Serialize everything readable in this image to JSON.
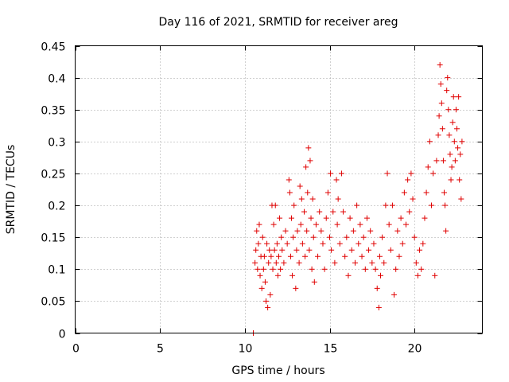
{
  "chart_data": {
    "type": "scatter",
    "title": "Day 116 of 2021, SRMTID for receiver areg",
    "xlabel": "GPS time / hours",
    "ylabel": "SRMTID / TECUs",
    "xlim": [
      0,
      24
    ],
    "ylim": [
      0,
      0.45
    ],
    "xticks": [
      0,
      5,
      10,
      15,
      20
    ],
    "yticks": [
      0,
      0.05,
      0.1,
      0.15,
      0.2,
      0.25,
      0.3,
      0.35,
      0.4,
      0.45
    ],
    "grid": true,
    "marker": "+",
    "color": "#e00000",
    "series": [
      {
        "name": "SRMTID",
        "points": [
          [
            10.5,
            0.0
          ],
          [
            10.6,
            0.11
          ],
          [
            10.65,
            0.13
          ],
          [
            10.7,
            0.16
          ],
          [
            10.75,
            0.1
          ],
          [
            10.8,
            0.14
          ],
          [
            10.85,
            0.17
          ],
          [
            10.9,
            0.09
          ],
          [
            10.95,
            0.12
          ],
          [
            11.0,
            0.07
          ],
          [
            11.05,
            0.15
          ],
          [
            11.1,
            0.1
          ],
          [
            11.15,
            0.12
          ],
          [
            11.2,
            0.08
          ],
          [
            11.25,
            0.05
          ],
          [
            11.3,
            0.14
          ],
          [
            11.35,
            0.04
          ],
          [
            11.4,
            0.11
          ],
          [
            11.45,
            0.13
          ],
          [
            11.5,
            0.06
          ],
          [
            11.55,
            0.12
          ],
          [
            11.6,
            0.2
          ],
          [
            11.65,
            0.1
          ],
          [
            11.7,
            0.17
          ],
          [
            11.75,
            0.13
          ],
          [
            11.8,
            0.2
          ],
          [
            11.85,
            0.11
          ],
          [
            11.9,
            0.14
          ],
          [
            11.95,
            0.09
          ],
          [
            12.0,
            0.12
          ],
          [
            12.05,
            0.18
          ],
          [
            12.1,
            0.1
          ],
          [
            12.15,
            0.15
          ],
          [
            12.2,
            0.13
          ],
          [
            12.3,
            0.11
          ],
          [
            12.4,
            0.16
          ],
          [
            12.5,
            0.14
          ],
          [
            12.6,
            0.24
          ],
          [
            12.65,
            0.22
          ],
          [
            12.7,
            0.12
          ],
          [
            12.75,
            0.18
          ],
          [
            12.8,
            0.09
          ],
          [
            12.85,
            0.15
          ],
          [
            12.9,
            0.2
          ],
          [
            13.0,
            0.07
          ],
          [
            13.05,
            0.13
          ],
          [
            13.1,
            0.16
          ],
          [
            13.2,
            0.11
          ],
          [
            13.25,
            0.23
          ],
          [
            13.3,
            0.17
          ],
          [
            13.35,
            0.21
          ],
          [
            13.4,
            0.14
          ],
          [
            13.5,
            0.19
          ],
          [
            13.55,
            0.12
          ],
          [
            13.6,
            0.26
          ],
          [
            13.65,
            0.16
          ],
          [
            13.7,
            0.22
          ],
          [
            13.75,
            0.29
          ],
          [
            13.8,
            0.13
          ],
          [
            13.85,
            0.27
          ],
          [
            13.9,
            0.18
          ],
          [
            13.95,
            0.1
          ],
          [
            14.0,
            0.21
          ],
          [
            14.05,
            0.15
          ],
          [
            14.1,
            0.08
          ],
          [
            14.2,
            0.17
          ],
          [
            14.3,
            0.12
          ],
          [
            14.4,
            0.19
          ],
          [
            14.5,
            0.16
          ],
          [
            14.6,
            0.14
          ],
          [
            14.7,
            0.1
          ],
          [
            14.8,
            0.18
          ],
          [
            14.9,
            0.22
          ],
          [
            15.0,
            0.15
          ],
          [
            15.05,
            0.25
          ],
          [
            15.1,
            0.13
          ],
          [
            15.2,
            0.19
          ],
          [
            15.3,
            0.11
          ],
          [
            15.4,
            0.24
          ],
          [
            15.45,
            0.17
          ],
          [
            15.5,
            0.21
          ],
          [
            15.6,
            0.14
          ],
          [
            15.7,
            0.25
          ],
          [
            15.8,
            0.19
          ],
          [
            15.9,
            0.12
          ],
          [
            16.0,
            0.15
          ],
          [
            16.1,
            0.09
          ],
          [
            16.2,
            0.18
          ],
          [
            16.3,
            0.13
          ],
          [
            16.4,
            0.16
          ],
          [
            16.5,
            0.11
          ],
          [
            16.6,
            0.2
          ],
          [
            16.7,
            0.14
          ],
          [
            16.8,
            0.17
          ],
          [
            16.9,
            0.12
          ],
          [
            17.0,
            0.15
          ],
          [
            17.1,
            0.1
          ],
          [
            17.2,
            0.18
          ],
          [
            17.3,
            0.13
          ],
          [
            17.4,
            0.16
          ],
          [
            17.5,
            0.11
          ],
          [
            17.6,
            0.14
          ],
          [
            17.7,
            0.1
          ],
          [
            17.8,
            0.07
          ],
          [
            17.9,
            0.04
          ],
          [
            17.95,
            0.12
          ],
          [
            18.0,
            0.09
          ],
          [
            18.1,
            0.15
          ],
          [
            18.2,
            0.11
          ],
          [
            18.3,
            0.2
          ],
          [
            18.4,
            0.25
          ],
          [
            18.5,
            0.17
          ],
          [
            18.6,
            0.13
          ],
          [
            18.7,
            0.2
          ],
          [
            18.8,
            0.06
          ],
          [
            18.9,
            0.1
          ],
          [
            19.0,
            0.16
          ],
          [
            19.1,
            0.12
          ],
          [
            19.2,
            0.18
          ],
          [
            19.3,
            0.14
          ],
          [
            19.4,
            0.22
          ],
          [
            19.5,
            0.17
          ],
          [
            19.6,
            0.24
          ],
          [
            19.7,
            0.19
          ],
          [
            19.8,
            0.25
          ],
          [
            19.9,
            0.21
          ],
          [
            20.0,
            0.15
          ],
          [
            20.1,
            0.11
          ],
          [
            20.2,
            0.09
          ],
          [
            20.3,
            0.13
          ],
          [
            20.4,
            0.1
          ],
          [
            20.5,
            0.14
          ],
          [
            20.6,
            0.18
          ],
          [
            20.7,
            0.22
          ],
          [
            20.8,
            0.26
          ],
          [
            20.9,
            0.3
          ],
          [
            21.0,
            0.2
          ],
          [
            21.1,
            0.25
          ],
          [
            21.2,
            0.09
          ],
          [
            21.3,
            0.27
          ],
          [
            21.4,
            0.31
          ],
          [
            21.45,
            0.34
          ],
          [
            21.5,
            0.42
          ],
          [
            21.55,
            0.39
          ],
          [
            21.6,
            0.36
          ],
          [
            21.65,
            0.32
          ],
          [
            21.7,
            0.27
          ],
          [
            21.75,
            0.22
          ],
          [
            21.8,
            0.2
          ],
          [
            21.85,
            0.16
          ],
          [
            21.9,
            0.38
          ],
          [
            21.95,
            0.4
          ],
          [
            22.0,
            0.35
          ],
          [
            22.05,
            0.31
          ],
          [
            22.1,
            0.28
          ],
          [
            22.15,
            0.24
          ],
          [
            22.2,
            0.26
          ],
          [
            22.25,
            0.33
          ],
          [
            22.3,
            0.37
          ],
          [
            22.35,
            0.3
          ],
          [
            22.4,
            0.27
          ],
          [
            22.45,
            0.35
          ],
          [
            22.5,
            0.32
          ],
          [
            22.55,
            0.29
          ],
          [
            22.6,
            0.37
          ],
          [
            22.65,
            0.24
          ],
          [
            22.7,
            0.28
          ],
          [
            22.75,
            0.21
          ],
          [
            22.8,
            0.3
          ]
        ]
      }
    ]
  }
}
